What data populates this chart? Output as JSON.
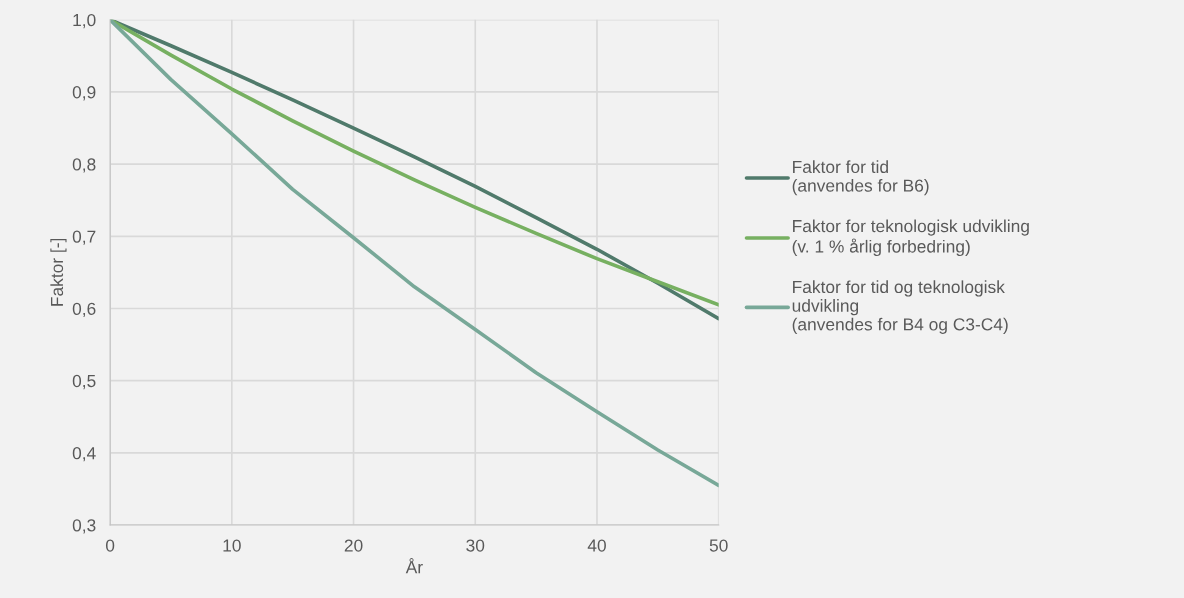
{
  "chart_data": {
    "type": "line",
    "xlabel": "År",
    "ylabel": "Faktor [-]",
    "x": [
      0,
      5,
      10,
      15,
      20,
      25,
      30,
      35,
      40,
      45,
      50
    ],
    "series": [
      {
        "name": "Faktor for tid\n(anvendes for B6)",
        "color": "#507a6b",
        "values": [
          1.0,
          0.964,
          0.927,
          0.889,
          0.85,
          0.81,
          0.769,
          0.726,
          0.682,
          0.635,
          0.586
        ]
      },
      {
        "name": "Faktor for teknologisk udvikling\n(v. 1 % årlig forbedring)",
        "color": "#77b061",
        "values": [
          1.0,
          0.951,
          0.904,
          0.86,
          0.818,
          0.778,
          0.74,
          0.704,
          0.669,
          0.637,
          0.605
        ]
      },
      {
        "name": "Faktor for tid og teknologisk\nudvikling\n(anvendes for B4 og C3-C4)",
        "color": "#78a898",
        "values": [
          1.0,
          0.917,
          0.842,
          0.765,
          0.698,
          0.63,
          0.571,
          0.511,
          0.457,
          0.404,
          0.355
        ]
      }
    ],
    "xlim": [
      0,
      50
    ],
    "xticks": [
      0,
      10,
      20,
      30,
      40,
      50
    ],
    "ylim": [
      0.3,
      1.0
    ],
    "yticks": [
      {
        "value": 0.3,
        "label": "0,3"
      },
      {
        "value": 0.4,
        "label": "0,4"
      },
      {
        "value": 0.5,
        "label": "0,5"
      },
      {
        "value": 0.6,
        "label": "0,6"
      },
      {
        "value": 0.7,
        "label": "0,7"
      },
      {
        "value": 0.8,
        "label": "0,8"
      },
      {
        "value": 0.9,
        "label": "0,9"
      },
      {
        "value": 1.0,
        "label": "1,0"
      }
    ],
    "grid": true,
    "legend": "right",
    "marker": "none",
    "line_style": "solid"
  }
}
